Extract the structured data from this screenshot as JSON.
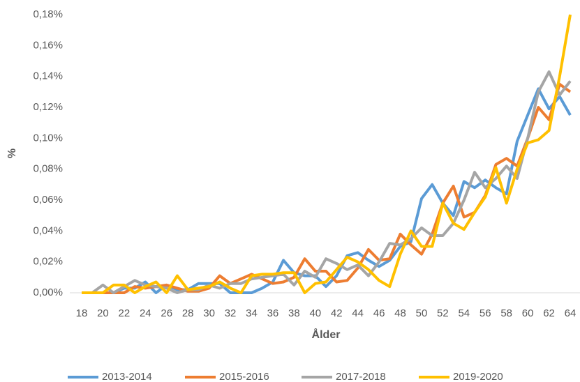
{
  "chart_data": {
    "type": "line",
    "x_label": "Ålder",
    "y_label": "%",
    "categories": [
      "18",
      null,
      "20",
      null,
      "22",
      null,
      "24",
      null,
      "26",
      null,
      "28",
      null,
      "30",
      null,
      "32",
      null,
      "34",
      null,
      "36",
      null,
      "38",
      null,
      "40",
      null,
      "42",
      null,
      "44",
      null,
      "46",
      null,
      "48",
      null,
      "50",
      null,
      "52",
      null,
      "54",
      null,
      "56",
      null,
      "58",
      null,
      "60",
      null,
      "62",
      null,
      "64"
    ],
    "series": [
      {
        "name": "2013-2014",
        "color": "#5b9bd5",
        "values": [
          0,
          0,
          0,
          0,
          0.003,
          0.003,
          0.007,
          0,
          0.005,
          0.002,
          0.002,
          0.006,
          0.006,
          0.006,
          0,
          0,
          0,
          0.003,
          0.007,
          0.021,
          0.013,
          0.011,
          0.011,
          0.004,
          0.011,
          0.024,
          0.026,
          0.021,
          0.017,
          0.021,
          0.03,
          0.033,
          0.061,
          0.07,
          0.058,
          0.05,
          0.072,
          0.068,
          0.073,
          0.068,
          0.064,
          0.098,
          0.115,
          0.132,
          0.119,
          0.127,
          0.115
        ]
      },
      {
        "name": "2015-2016",
        "color": "#ed7d31",
        "values": [
          0,
          0,
          0,
          0,
          0,
          0.004,
          0.003,
          0.004,
          0.005,
          0.003,
          0.001,
          0.001,
          0.003,
          0.011,
          0.006,
          0.009,
          0.012,
          0.009,
          0.006,
          0.007,
          0.01,
          0.022,
          0.014,
          0.014,
          0.007,
          0.008,
          0.016,
          0.028,
          0.021,
          0.022,
          0.038,
          0.031,
          0.025,
          0.038,
          0.058,
          0.069,
          0.049,
          0.052,
          0.063,
          0.083,
          0.087,
          0.082,
          0.1,
          0.12,
          0.112,
          0.135,
          0.13
        ]
      },
      {
        "name": "2017-2018",
        "color": "#a5a5a5",
        "values": [
          0,
          0,
          0.005,
          0,
          0.004,
          0.008,
          0.005,
          0.004,
          0.003,
          0,
          0.002,
          0.002,
          0.005,
          0.003,
          0.006,
          0.006,
          0.009,
          0.01,
          0.011,
          0.012,
          0.005,
          0.014,
          0.01,
          0.022,
          0.019,
          0.015,
          0.018,
          0.011,
          0.02,
          0.032,
          0.031,
          0.035,
          0.042,
          0.037,
          0.037,
          0.045,
          0.06,
          0.078,
          0.068,
          0.074,
          0.082,
          0.074,
          0.1,
          0.13,
          0.143,
          0.128,
          0.137
        ]
      },
      {
        "name": "2019-2020",
        "color": "#ffc000",
        "values": [
          0,
          0,
          0,
          0.005,
          0.005,
          0,
          0.004,
          0.007,
          0,
          0.011,
          0.002,
          0.003,
          0.004,
          0.007,
          0.003,
          0,
          0.011,
          0.012,
          0.012,
          0.013,
          0.013,
          0,
          0.006,
          0.007,
          0.015,
          0.023,
          0.02,
          0.015,
          0.008,
          0.004,
          0.025,
          0.04,
          0.03,
          0.03,
          0.058,
          0.045,
          0.041,
          0.052,
          0.062,
          0.081,
          0.058,
          0.08,
          0.097,
          0.099,
          0.105,
          0.14,
          0.18
        ]
      }
    ],
    "ylim": [
      0,
      0.18
    ],
    "yticks": [
      {
        "value": 0,
        "label": "0,00%"
      },
      {
        "value": 0.02,
        "label": "0,02%"
      },
      {
        "value": 0.04,
        "label": "0,04%"
      },
      {
        "value": 0.06,
        "label": "0,06%"
      },
      {
        "value": 0.08,
        "label": "0,08%"
      },
      {
        "value": 0.1,
        "label": "0,10%"
      },
      {
        "value": 0.12,
        "label": "0,12%"
      },
      {
        "value": 0.14,
        "label": "0,14%"
      },
      {
        "value": 0.16,
        "label": "0,16%"
      },
      {
        "value": 0.18,
        "label": "0,18%"
      }
    ],
    "grid": false,
    "legend": "bottom"
  }
}
